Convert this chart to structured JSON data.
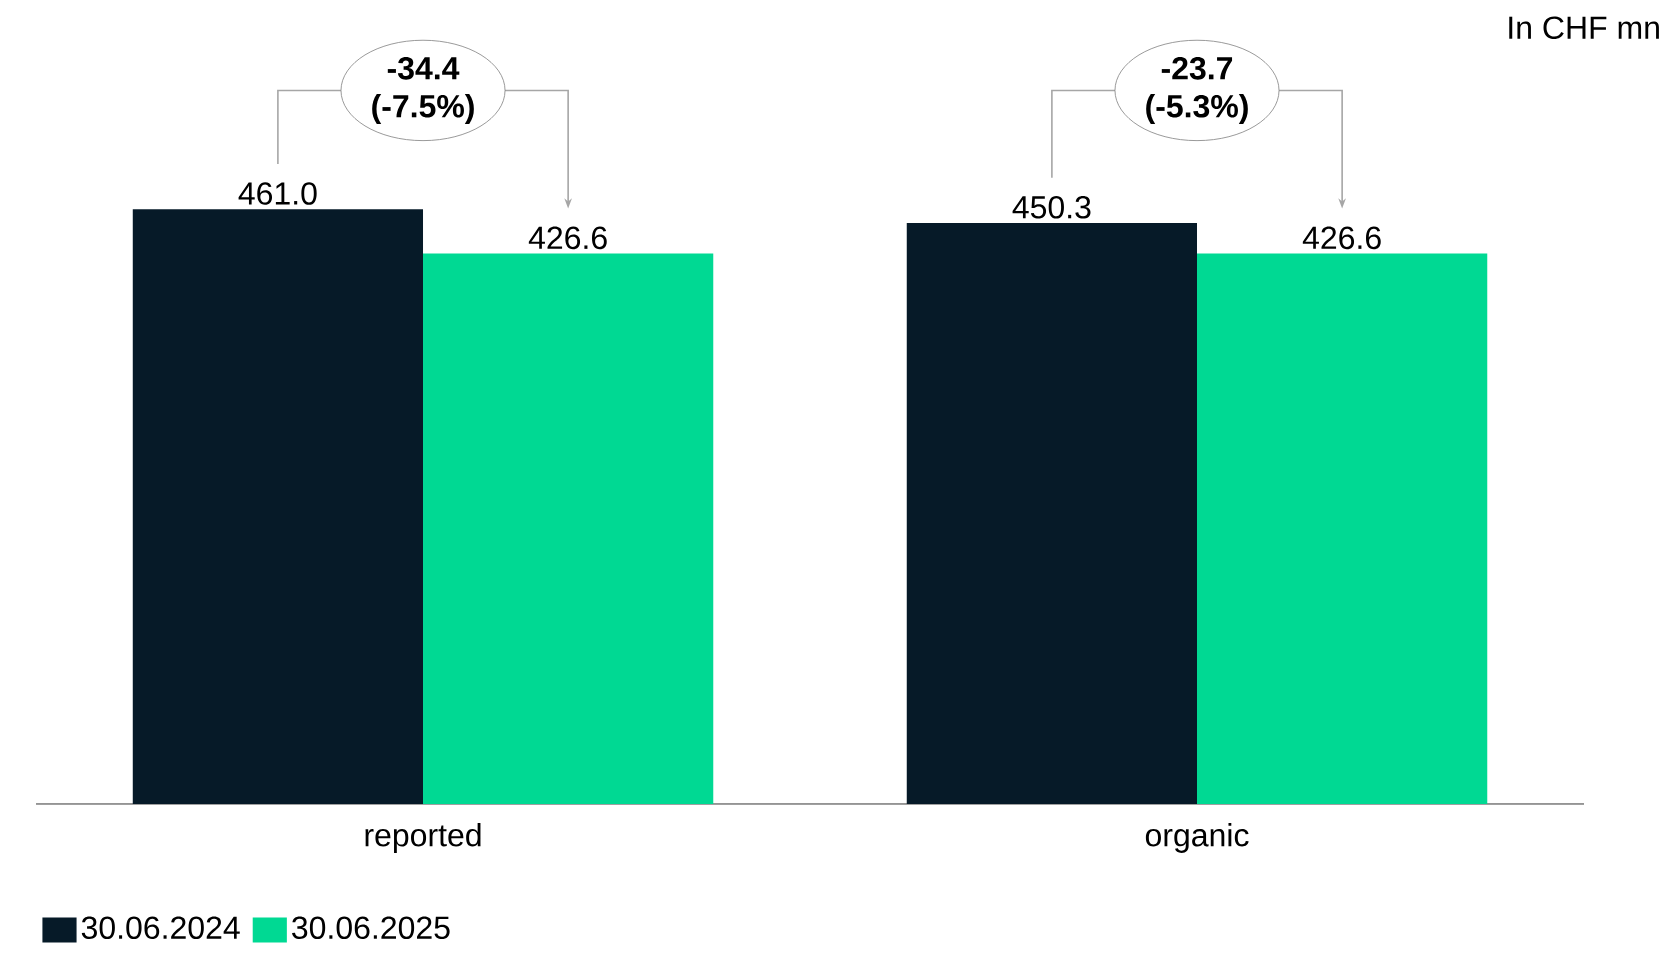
{
  "chart_data": {
    "type": "bar",
    "categories": [
      "reported",
      "organic"
    ],
    "series": [
      {
        "name": "30.06.2024",
        "color": "#061a28",
        "values": [
          461.0,
          450.3
        ],
        "value_labels": [
          "461.0",
          "450.3"
        ]
      },
      {
        "name": "30.06.2025",
        "color": "#00d993",
        "values": [
          426.6,
          426.6
        ],
        "value_labels": [
          "426.6",
          "426.6"
        ]
      }
    ],
    "legend": "bottom left",
    "annotations": [
      "-34.4 (-7.5%)",
      "-23.7 (-5.3%)",
      "In CHF  mn"
    ]
  }
}
